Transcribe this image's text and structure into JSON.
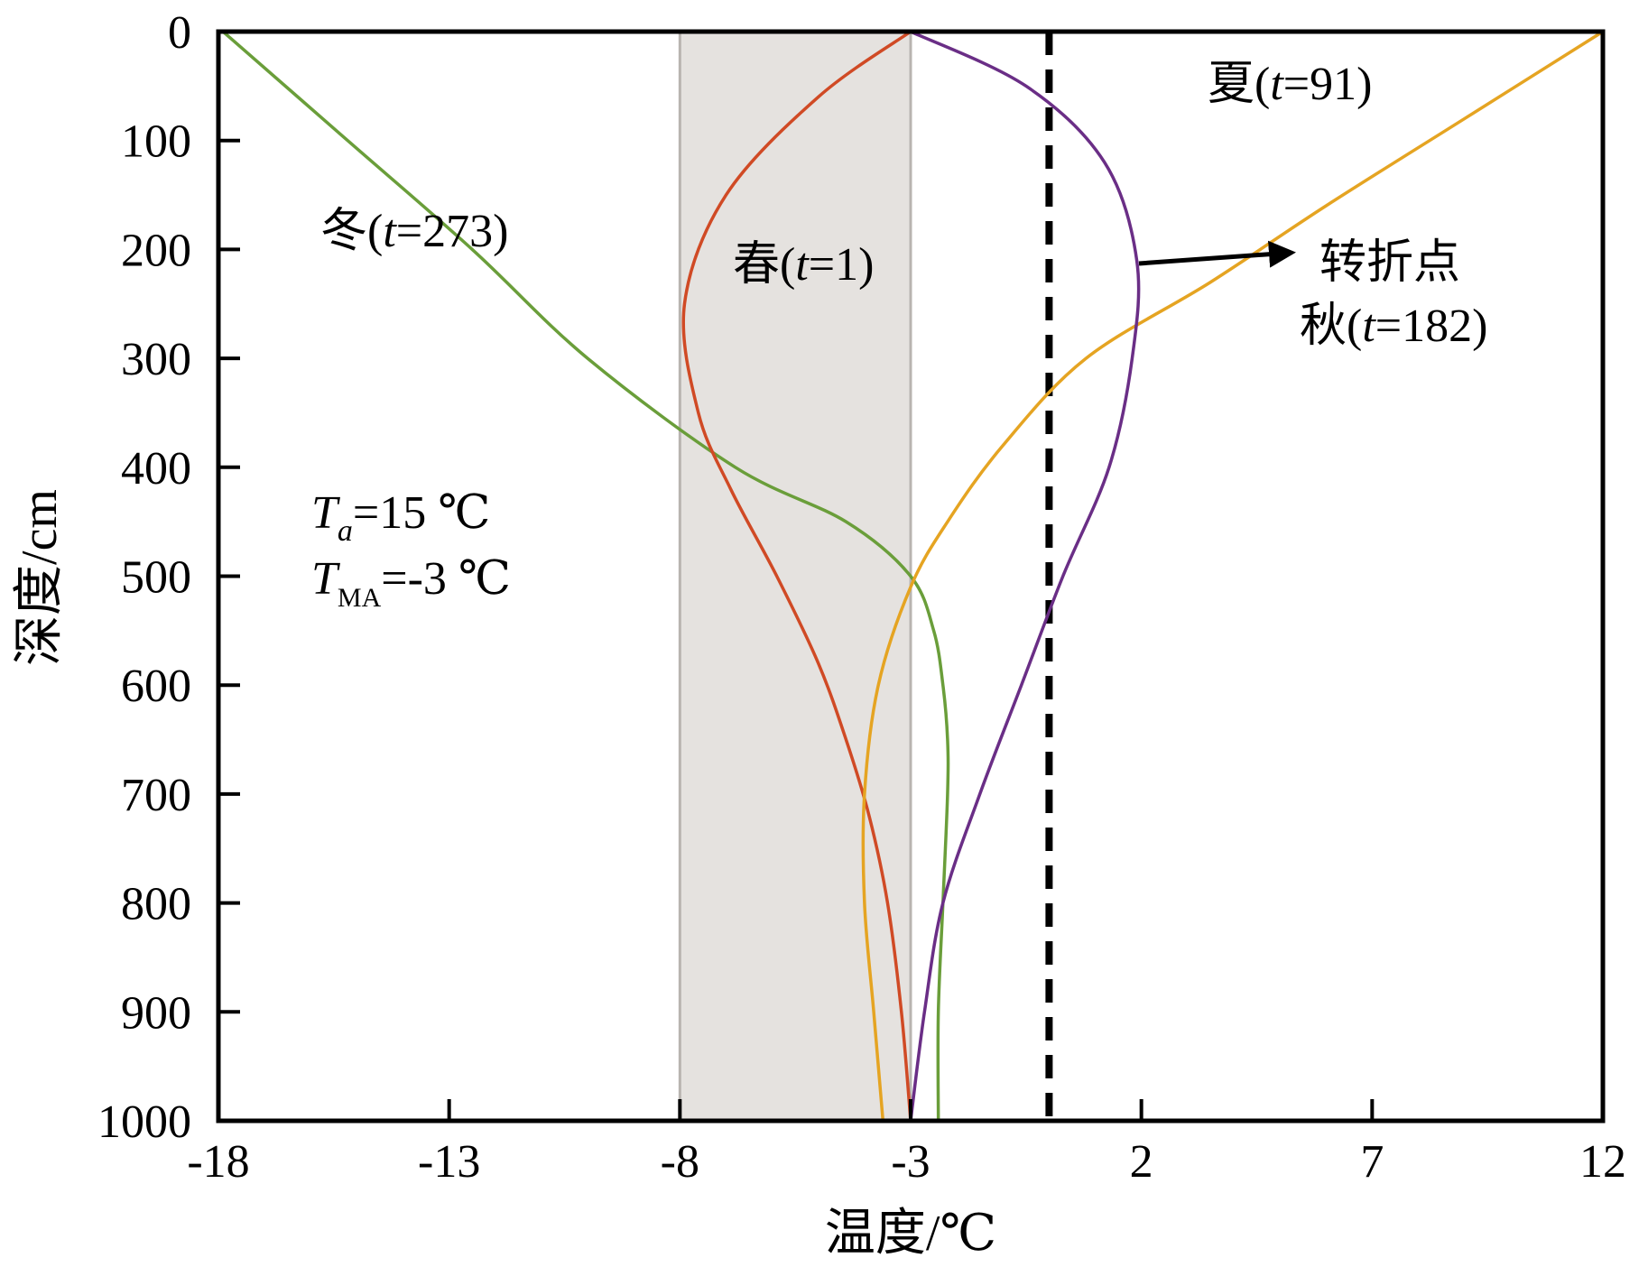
{
  "chart_data": {
    "type": "line",
    "orientation": "depth-profile",
    "xlabel": "温度/℃",
    "ylabel": "深度/cm",
    "xlim": [
      -18,
      12
    ],
    "ylim": [
      0,
      1000
    ],
    "y_inverted": true,
    "x_ticks": [
      -18,
      -13,
      -8,
      -3,
      2,
      7,
      12
    ],
    "y_ticks": [
      0,
      100,
      200,
      300,
      400,
      500,
      600,
      700,
      800,
      900,
      1000
    ],
    "grid": false,
    "shaded_band": {
      "x_range": [
        -8,
        -3
      ],
      "color": "#e5e2df",
      "edge_color": "#b8b4b0"
    },
    "reference_line": {
      "x": 0,
      "style": "dashed",
      "color": "#000000"
    },
    "series": [
      {
        "name": "冬(t=273)",
        "color": "#6a9e3a",
        "points": [
          [
            -17.9,
            0
          ],
          [
            -15.2,
            100
          ],
          [
            -12.5,
            200
          ],
          [
            -10.0,
            300
          ],
          [
            -6.8,
            400
          ],
          [
            -4.4,
            450
          ],
          [
            -3.0,
            500
          ],
          [
            -2.5,
            550
          ],
          [
            -2.3,
            600
          ],
          [
            -2.2,
            650
          ],
          [
            -2.2,
            700
          ],
          [
            -2.3,
            800
          ],
          [
            -2.4,
            900
          ],
          [
            -2.4,
            1000
          ]
        ]
      },
      {
        "name": "春(t=1)",
        "color": "#d04a25",
        "points": [
          [
            -3.0,
            0
          ],
          [
            -5.0,
            60
          ],
          [
            -7.0,
            150
          ],
          [
            -7.9,
            250
          ],
          [
            -7.6,
            350
          ],
          [
            -6.9,
            420
          ],
          [
            -5.9,
            500
          ],
          [
            -5.0,
            580
          ],
          [
            -4.4,
            650
          ],
          [
            -3.9,
            720
          ],
          [
            -3.5,
            800
          ],
          [
            -3.2,
            900
          ],
          [
            -3.0,
            1000
          ]
        ]
      },
      {
        "name": "夏(t=91)",
        "color": "#e5a422",
        "points": [
          [
            12.0,
            0
          ],
          [
            9.0,
            80
          ],
          [
            6.0,
            160
          ],
          [
            3.5,
            230
          ],
          [
            0.8,
            300
          ],
          [
            -1.0,
            380
          ],
          [
            -2.2,
            450
          ],
          [
            -3.0,
            510
          ],
          [
            -3.7,
            600
          ],
          [
            -4.0,
            700
          ],
          [
            -4.0,
            800
          ],
          [
            -3.8,
            900
          ],
          [
            -3.6,
            1000
          ]
        ]
      },
      {
        "name": "秋(t=182)",
        "color": "#6a2e86",
        "points": [
          [
            -3.0,
            0
          ],
          [
            -0.5,
            50
          ],
          [
            1.2,
            120
          ],
          [
            1.9,
            210
          ],
          [
            1.8,
            300
          ],
          [
            1.3,
            400
          ],
          [
            0.3,
            500
          ],
          [
            -0.6,
            600
          ],
          [
            -1.5,
            700
          ],
          [
            -2.3,
            800
          ],
          [
            -2.7,
            900
          ],
          [
            -3.0,
            1000
          ]
        ]
      }
    ],
    "annotations": {
      "winter": {
        "season": "冬",
        "t": "t",
        "rest": "=273)"
      },
      "spring": {
        "season": "春",
        "t": "t",
        "rest": "=1)"
      },
      "summer": {
        "season": "夏",
        "t": "t",
        "rest": "=91)"
      },
      "autumn": {
        "season": "秋",
        "t": "t",
        "rest": "=182)"
      },
      "turning_point": "转折点",
      "params": {
        "ta_symbol": "T",
        "ta_sub": "a",
        "ta_value": "=15 ℃",
        "tma_symbol": "T",
        "tma_sub": "MA",
        "tma_value": "=-3 ℃"
      }
    }
  }
}
